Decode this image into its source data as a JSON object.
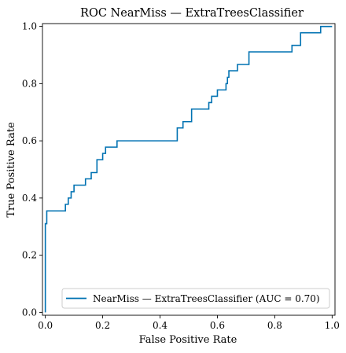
{
  "chart_data": {
    "type": "line",
    "title": "ROC NearMiss — ExtraTreesClassifier",
    "xlabel": "False Positive Rate",
    "ylabel": "True Positive Rate",
    "xlim": [
      -0.01,
      1.01
    ],
    "ylim": [
      -0.01,
      1.01
    ],
    "xticks": [
      "0.0",
      "0.2",
      "0.4",
      "0.6",
      "0.8",
      "1.0"
    ],
    "yticks": [
      "0.0",
      "0.2",
      "0.4",
      "0.6",
      "0.8",
      "1.0"
    ],
    "grid": false,
    "legend_position": "bottom-right",
    "line_color": "#0072b2",
    "series": [
      {
        "name": "NearMiss — ExtraTreesClassifier (AUC = 0.70)",
        "x": [
          0.0,
          0.0,
          0.0,
          0.005,
          0.005,
          0.07,
          0.07,
          0.08,
          0.08,
          0.09,
          0.09,
          0.1,
          0.1,
          0.14,
          0.14,
          0.16,
          0.16,
          0.18,
          0.18,
          0.2,
          0.2,
          0.21,
          0.21,
          0.25,
          0.25,
          0.46,
          0.46,
          0.48,
          0.48,
          0.51,
          0.51,
          0.57,
          0.57,
          0.58,
          0.58,
          0.6,
          0.6,
          0.63,
          0.63,
          0.635,
          0.635,
          0.64,
          0.64,
          0.67,
          0.67,
          0.71,
          0.71,
          0.86,
          0.86,
          0.89,
          0.89,
          0.96,
          0.96,
          1.0
        ],
        "y": [
          0.0,
          0.31,
          0.31,
          0.31,
          0.355,
          0.355,
          0.378,
          0.378,
          0.4,
          0.4,
          0.422,
          0.422,
          0.445,
          0.445,
          0.467,
          0.467,
          0.489,
          0.489,
          0.534,
          0.534,
          0.556,
          0.556,
          0.578,
          0.578,
          0.6,
          0.6,
          0.645,
          0.645,
          0.667,
          0.667,
          0.711,
          0.711,
          0.734,
          0.734,
          0.756,
          0.756,
          0.778,
          0.778,
          0.8,
          0.8,
          0.822,
          0.822,
          0.845,
          0.845,
          0.867,
          0.867,
          0.911,
          0.911,
          0.934,
          0.934,
          0.978,
          0.978,
          1.0,
          1.0
        ]
      }
    ]
  }
}
